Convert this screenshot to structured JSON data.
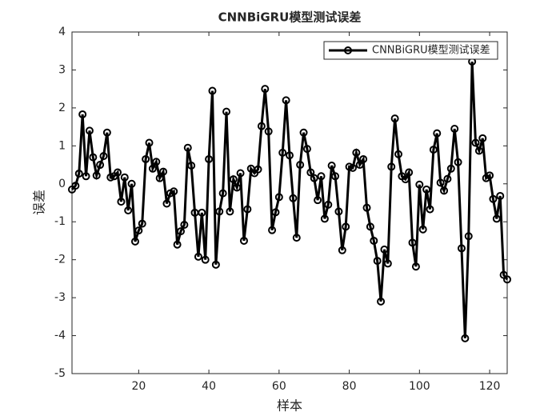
{
  "chart_data": {
    "type": "line",
    "title": "CNNBiGRU模型测试误差",
    "x_label": "样本",
    "y_label": "误差",
    "x": [
      1,
      2,
      3,
      4,
      5,
      6,
      7,
      8,
      9,
      10,
      11,
      12,
      13,
      14,
      15,
      16,
      17,
      18,
      19,
      20,
      21,
      22,
      23,
      24,
      25,
      26,
      27,
      28,
      29,
      30,
      31,
      32,
      33,
      34,
      35,
      36,
      37,
      38,
      39,
      40,
      41,
      42,
      43,
      44,
      45,
      46,
      47,
      48,
      49,
      50,
      51,
      52,
      53,
      54,
      55,
      56,
      57,
      58,
      59,
      60,
      61,
      62,
      63,
      64,
      65,
      66,
      67,
      68,
      69,
      70,
      71,
      72,
      73,
      74,
      75,
      76,
      77,
      78,
      79,
      80,
      81,
      82,
      83,
      84,
      85,
      86,
      87,
      88,
      89,
      90,
      91,
      92,
      93,
      94,
      95,
      96,
      97,
      98,
      99,
      100,
      101,
      102,
      103,
      104,
      105,
      106,
      107,
      108,
      109,
      110,
      111,
      112,
      113,
      114,
      115,
      116,
      117,
      118,
      119,
      120,
      121,
      122,
      123,
      124,
      125
    ],
    "series": [
      {
        "name": "CNNBiGRU模型测试误差",
        "color": "#000000",
        "values": [
          -0.15,
          -0.05,
          0.27,
          1.83,
          0.2,
          1.4,
          0.7,
          0.22,
          0.5,
          0.73,
          1.35,
          0.17,
          0.2,
          0.3,
          -0.47,
          0.17,
          -0.7,
          0.0,
          -1.52,
          -1.23,
          -1.05,
          0.65,
          1.08,
          0.4,
          0.58,
          0.15,
          0.32,
          -0.52,
          -0.25,
          -0.2,
          -1.6,
          -1.25,
          -1.08,
          0.95,
          0.48,
          -0.76,
          -1.92,
          -0.76,
          -2.0,
          0.65,
          2.45,
          -2.13,
          -0.73,
          -0.25,
          1.9,
          -0.73,
          0.12,
          -0.1,
          0.28,
          -1.5,
          -0.67,
          0.4,
          0.28,
          0.38,
          1.52,
          2.5,
          1.38,
          -1.22,
          -0.75,
          -0.35,
          0.82,
          2.2,
          0.75,
          -0.38,
          -1.42,
          0.5,
          1.35,
          0.92,
          0.3,
          0.15,
          -0.43,
          0.2,
          -0.92,
          -0.55,
          0.48,
          0.2,
          -0.73,
          -1.75,
          -1.13,
          0.45,
          0.42,
          0.82,
          0.5,
          0.65,
          -0.63,
          -1.13,
          -1.5,
          -2.03,
          -3.1,
          -1.73,
          -2.1,
          0.45,
          1.72,
          0.78,
          0.2,
          0.12,
          0.3,
          -1.55,
          -2.18,
          -0.02,
          -1.2,
          -0.15,
          -0.67,
          0.9,
          1.33,
          0.03,
          -0.18,
          0.13,
          0.4,
          1.45,
          0.57,
          -1.7,
          -4.07,
          -1.38,
          3.22,
          1.08,
          0.87,
          1.2,
          0.15,
          0.22,
          -0.4,
          -0.92,
          -0.32,
          -2.4,
          -2.52
        ]
      }
    ],
    "xlim": [
      1,
      125
    ],
    "xticks": [
      20,
      40,
      60,
      80,
      100,
      120
    ],
    "ylim": [
      -5,
      4
    ],
    "yticks": [
      -5,
      -4,
      -3,
      -2,
      -1,
      0,
      1,
      2,
      3,
      4
    ],
    "legend": "top-right",
    "grid": false
  }
}
